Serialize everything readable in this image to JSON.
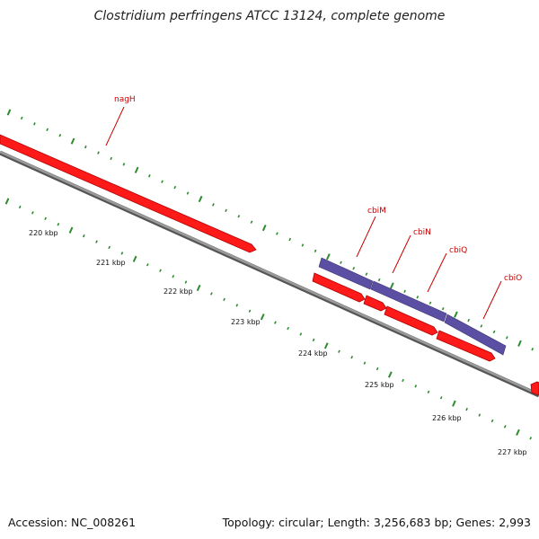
{
  "title": "Clostridium perfringens ATCC 13124, complete genome",
  "footer": {
    "accession": "Accession: NC_008261",
    "summary": "Topology: circular; Length: 3,256,683 bp; Genes: 2,993"
  },
  "kbp_labels": [
    "220 kbp",
    "221 kbp",
    "222 kbp",
    "223 kbp",
    "224 kbp",
    "225 kbp",
    "226 kbp",
    "227 kbp"
  ],
  "genes": [
    {
      "name": "nagH",
      "strand": "plus"
    },
    {
      "name": "cbiM",
      "strand": "plus"
    },
    {
      "name": "cbiN",
      "strand": "plus"
    },
    {
      "name": "cbiQ",
      "strand": "plus"
    },
    {
      "name": "cbiO",
      "strand": "plus"
    }
  ],
  "colors": {
    "cds": "#ff1a1a",
    "cds_edge": "#b00000",
    "feature": "#5b4fa3",
    "backbone": "#808080",
    "tick": "#2e8b2e",
    "gene_label": "#cc0000"
  }
}
